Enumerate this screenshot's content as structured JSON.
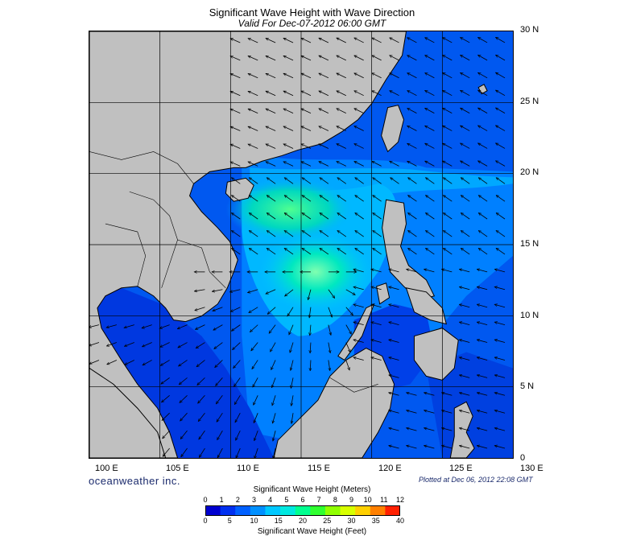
{
  "header": {
    "title": "Significant Wave Height with Wave Direction",
    "subtitle": "Valid For Dec-07-2012 06:00 GMT"
  },
  "map": {
    "lon_range": [
      100,
      130
    ],
    "lat_range": [
      0,
      30
    ],
    "grid_step_deg": 5,
    "land_color": "#c0c0c0",
    "latitude_labels": [
      "30 N",
      "25 N",
      "20 N",
      "15 N",
      "10 N",
      "5 N",
      "0"
    ],
    "longitude_labels": [
      "100 E",
      "105 E",
      "110 E",
      "115 E",
      "120 E",
      "125 E",
      "130 E"
    ]
  },
  "footer": {
    "brand": "oceanweather inc.",
    "plotted": "Plotted at Dec 06, 2012 22:08 GMT"
  },
  "legend": {
    "meters_title": "Significant Wave Height (Meters)",
    "feet_title": "Significant Wave Height (Feet)",
    "meters_ticks": [
      "0",
      "1",
      "2",
      "3",
      "4",
      "5",
      "6",
      "7",
      "8",
      "9",
      "10",
      "11",
      "12"
    ],
    "feet_ticks": [
      "0",
      "5",
      "10",
      "15",
      "20",
      "25",
      "30",
      "35",
      "40"
    ],
    "colors": [
      "#0000d0",
      "#0030f0",
      "#0060ff",
      "#0090ff",
      "#00c8ff",
      "#00e8e0",
      "#00ff90",
      "#30ff30",
      "#90ff00",
      "#d8ff00",
      "#ffd000",
      "#ff8000",
      "#ff2000"
    ]
  }
}
